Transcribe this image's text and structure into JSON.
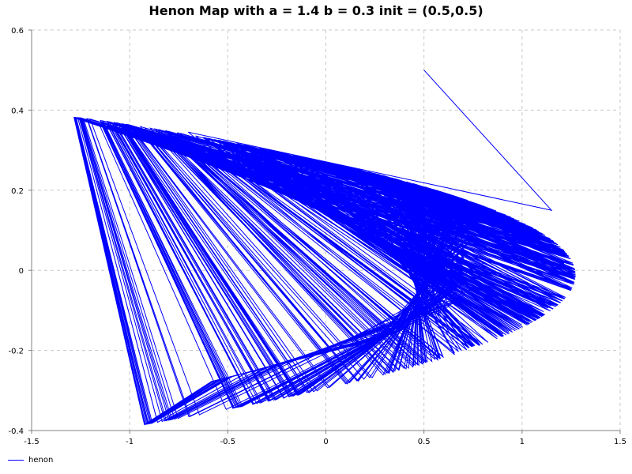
{
  "chart_data": {
    "type": "line",
    "title": "Henon Map with a = 1.4 b = 0.3 init = (0.5,0.5)",
    "xlabel": "",
    "ylabel": "",
    "xlim": [
      -1.5,
      1.5
    ],
    "ylim": [
      -0.4,
      0.6
    ],
    "xticks": [
      -1.5,
      -1,
      -0.5,
      0,
      0.5,
      1,
      1.5
    ],
    "xtick_labels": [
      "-1.5",
      "-1",
      "-0.5",
      "0",
      "0.5",
      "1",
      "1.5"
    ],
    "yticks": [
      -0.4,
      -0.2,
      0,
      0.2,
      0.4,
      0.6
    ],
    "ytick_labels": [
      "-0.4",
      "-0.2",
      "0",
      "0.2",
      "0.4",
      "0.6"
    ],
    "grid": true,
    "legend_position": "bottom-left",
    "series": [
      {
        "name": "henon",
        "color": "#0000ff",
        "generator": {
          "map": "henon",
          "a": 1.4,
          "b": 0.3,
          "x0": 0.5,
          "y0": 0.5,
          "iterations": 1000
        }
      }
    ]
  }
}
